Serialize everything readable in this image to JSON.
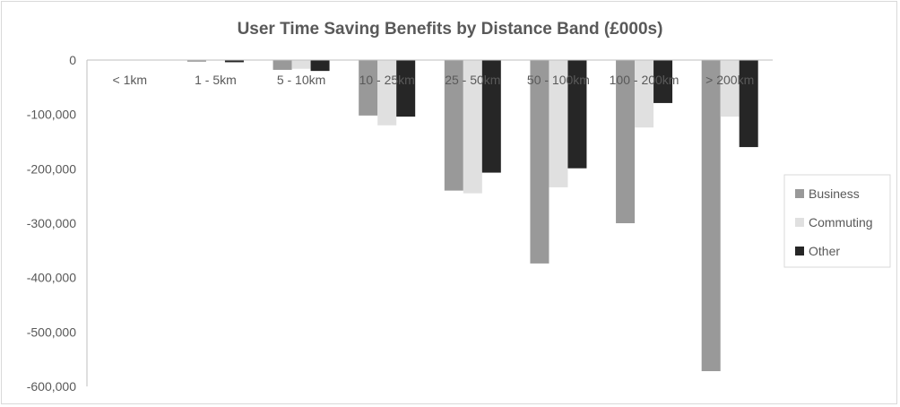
{
  "chart_data": {
    "type": "bar",
    "title": "User Time Saving Benefits by Distance Band (£000s)",
    "xlabel": "",
    "ylabel": "",
    "categories": [
      "< 1km",
      "1 - 5km",
      "5 - 10km",
      "10 - 25km",
      "25 - 50km",
      "50 - 100km",
      "100 - 200km",
      "> 200km"
    ],
    "series": [
      {
        "name": "Business",
        "color": "#999999",
        "values": [
          0,
          -3000,
          -18000,
          -102000,
          -240000,
          -374000,
          -300000,
          -572000
        ]
      },
      {
        "name": "Commuting",
        "color": "#e0e0e0",
        "values": [
          0,
          -1000,
          -16000,
          -120000,
          -245000,
          -234000,
          -124000,
          -104000
        ]
      },
      {
        "name": "Other",
        "color": "#262626",
        "values": [
          0,
          -4000,
          -20000,
          -104000,
          -207000,
          -199000,
          -79000,
          -160000
        ]
      }
    ],
    "ylim": [
      -600000,
      0
    ],
    "yticks": [
      0,
      -100000,
      -200000,
      -300000,
      -400000,
      -500000,
      -600000
    ],
    "ytick_labels": [
      "0",
      "-100,000",
      "-200,000",
      "-300,000",
      "-400,000",
      "-500,000",
      "-600,000"
    ],
    "grid": false,
    "legend": "right"
  }
}
